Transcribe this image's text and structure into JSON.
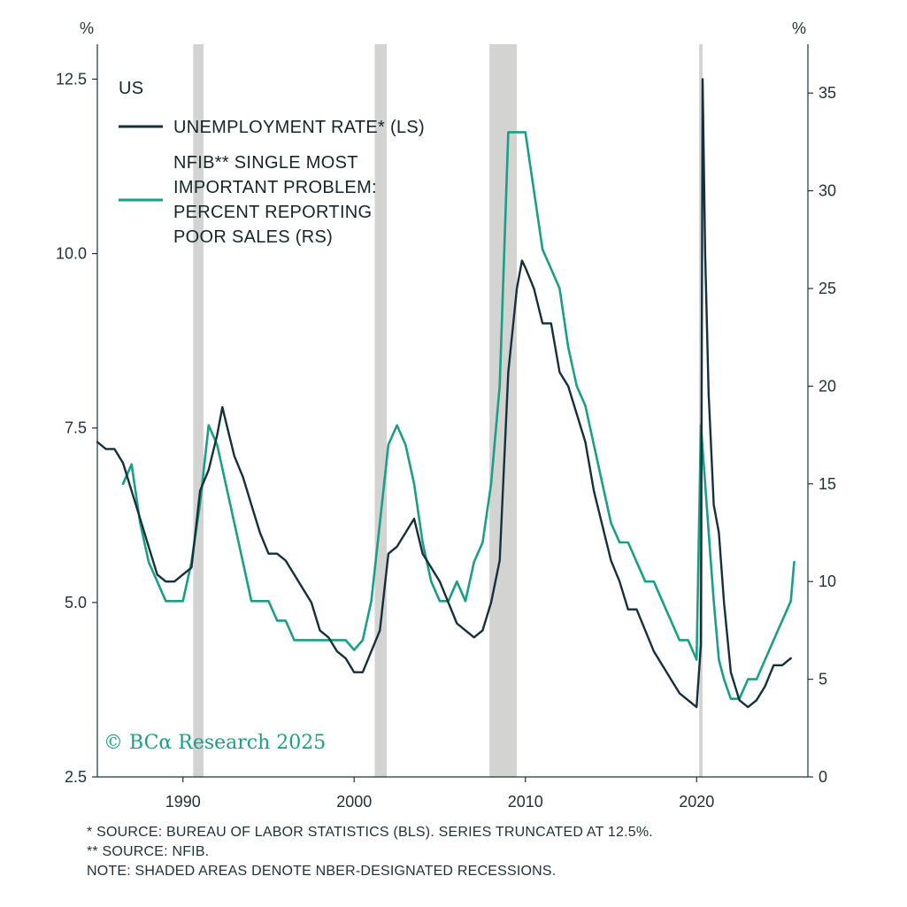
{
  "chart_data": {
    "type": "line",
    "panel_label": "US",
    "left_axis": {
      "unit": "%",
      "ylim": [
        2.5,
        13.0
      ],
      "ticks": [
        "2.5",
        "5.0",
        "7.5",
        "10.0",
        "12.5"
      ]
    },
    "right_axis": {
      "unit": "%",
      "ylim": [
        0,
        37.5
      ],
      "ticks": [
        "0",
        "5",
        "10",
        "15",
        "20",
        "25",
        "30",
        "35"
      ]
    },
    "x_axis": {
      "xlim": [
        1985,
        2026.5
      ],
      "ticks": [
        "1990",
        "2000",
        "2010",
        "2020"
      ]
    },
    "legend": [
      "UNEMPLOYMENT RATE* (LS)",
      "NFIB** SINGLE MOST",
      "IMPORTANT PROBLEM:",
      "PERCENT REPORTING",
      "POOR SALES (RS)"
    ],
    "recessions": [
      [
        1990.6,
        1991.2
      ],
      [
        2001.2,
        2001.9
      ],
      [
        2007.9,
        2009.5
      ],
      [
        2020.15,
        2020.35
      ]
    ],
    "series": [
      {
        "name": "UNEMPLOYMENT RATE* (LS)",
        "axis": "left",
        "color": "#14303a",
        "x": [
          1985.0,
          1985.5,
          1986.0,
          1986.5,
          1987.0,
          1987.5,
          1988.0,
          1988.5,
          1989.0,
          1989.5,
          1990.0,
          1990.5,
          1991.0,
          1991.5,
          1992.0,
          1992.3,
          1992.5,
          1993.0,
          1993.5,
          1994.0,
          1994.5,
          1995.0,
          1995.5,
          1996.0,
          1996.5,
          1997.0,
          1997.5,
          1998.0,
          1998.5,
          1999.0,
          1999.5,
          2000.0,
          2000.5,
          2001.0,
          2001.5,
          2002.0,
          2002.5,
          2003.0,
          2003.5,
          2004.0,
          2004.5,
          2005.0,
          2005.5,
          2006.0,
          2006.5,
          2007.0,
          2007.5,
          2008.0,
          2008.5,
          2009.0,
          2009.5,
          2009.8,
          2010.0,
          2010.5,
          2011.0,
          2011.5,
          2012.0,
          2012.5,
          2013.0,
          2013.5,
          2014.0,
          2014.5,
          2015.0,
          2015.5,
          2016.0,
          2016.5,
          2017.0,
          2017.5,
          2018.0,
          2018.5,
          2019.0,
          2019.5,
          2020.0,
          2020.25,
          2020.35,
          2020.5,
          2020.7,
          2021.0,
          2021.3,
          2021.6,
          2022.0,
          2022.5,
          2023.0,
          2023.5,
          2024.0,
          2024.5,
          2025.0,
          2025.5
        ],
        "y": [
          7.3,
          7.2,
          7.2,
          7.0,
          6.6,
          6.2,
          5.8,
          5.4,
          5.3,
          5.3,
          5.4,
          5.5,
          6.6,
          6.9,
          7.4,
          7.8,
          7.6,
          7.1,
          6.8,
          6.4,
          6.0,
          5.7,
          5.7,
          5.6,
          5.4,
          5.2,
          5.0,
          4.6,
          4.5,
          4.3,
          4.2,
          4.0,
          4.0,
          4.3,
          4.6,
          5.7,
          5.8,
          6.0,
          6.2,
          5.7,
          5.5,
          5.3,
          5.0,
          4.7,
          4.6,
          4.5,
          4.6,
          5.0,
          5.6,
          8.3,
          9.5,
          9.9,
          9.8,
          9.5,
          9.0,
          9.0,
          8.3,
          8.1,
          7.7,
          7.3,
          6.6,
          6.1,
          5.6,
          5.3,
          4.9,
          4.9,
          4.6,
          4.3,
          4.1,
          3.9,
          3.7,
          3.6,
          3.5,
          4.4,
          12.5,
          10.0,
          8.0,
          6.4,
          6.0,
          5.0,
          4.0,
          3.6,
          3.5,
          3.6,
          3.8,
          4.1,
          4.1,
          4.2
        ]
      },
      {
        "name": "NFIB** SINGLE MOST IMPORTANT PROBLEM: PERCENT REPORTING POOR SALES (RS)",
        "axis": "right",
        "color": "#1a9f86",
        "x": [
          1986.5,
          1987.0,
          1987.5,
          1988.0,
          1988.5,
          1989.0,
          1989.5,
          1990.0,
          1990.5,
          1991.0,
          1991.5,
          1992.0,
          1992.5,
          1993.0,
          1993.5,
          1994.0,
          1994.5,
          1995.0,
          1995.5,
          1996.0,
          1996.5,
          1997.0,
          1997.5,
          1998.0,
          1998.5,
          1999.0,
          1999.5,
          2000.0,
          2000.5,
          2001.0,
          2001.5,
          2002.0,
          2002.5,
          2003.0,
          2003.5,
          2004.0,
          2004.5,
          2005.0,
          2005.5,
          2006.0,
          2006.5,
          2007.0,
          2007.5,
          2008.0,
          2008.5,
          2009.0,
          2009.5,
          2010.0,
          2010.5,
          2011.0,
          2011.5,
          2012.0,
          2012.5,
          2013.0,
          2013.5,
          2014.0,
          2014.5,
          2015.0,
          2015.5,
          2016.0,
          2016.5,
          2017.0,
          2017.5,
          2018.0,
          2018.5,
          2019.0,
          2019.5,
          2020.0,
          2020.25,
          2020.5,
          2020.75,
          2021.0,
          2021.3,
          2021.6,
          2022.0,
          2022.5,
          2023.0,
          2023.5,
          2024.0,
          2024.5,
          2025.0,
          2025.5,
          2025.7
        ],
        "y": [
          15,
          16,
          13,
          11,
          10,
          9,
          9,
          9,
          11,
          14,
          18,
          17,
          15,
          13,
          11,
          9,
          9,
          9,
          8,
          8,
          7,
          7,
          7,
          7,
          7,
          7,
          7,
          6.5,
          7,
          9,
          13,
          17,
          18,
          17,
          15,
          12,
          10,
          9,
          9,
          10,
          9,
          11,
          12,
          15,
          20,
          33,
          33,
          33,
          30,
          27,
          26,
          25,
          22,
          20,
          19,
          17,
          15,
          13,
          12,
          12,
          11,
          10,
          10,
          9,
          8,
          7,
          7,
          6,
          18,
          15,
          12,
          9,
          6,
          5,
          4,
          4,
          5,
          5,
          6,
          7,
          8,
          9,
          11
        ]
      }
    ]
  },
  "copyright": "© BCα Research 2025",
  "notes": [
    "*  SOURCE: BUREAU OF LABOR STATISTICS (BLS). SERIES TRUNCATED AT 12.5%.",
    "** SOURCE: NFIB.",
    "NOTE: SHADED AREAS DENOTE NBER-DESIGNATED RECESSIONS."
  ]
}
